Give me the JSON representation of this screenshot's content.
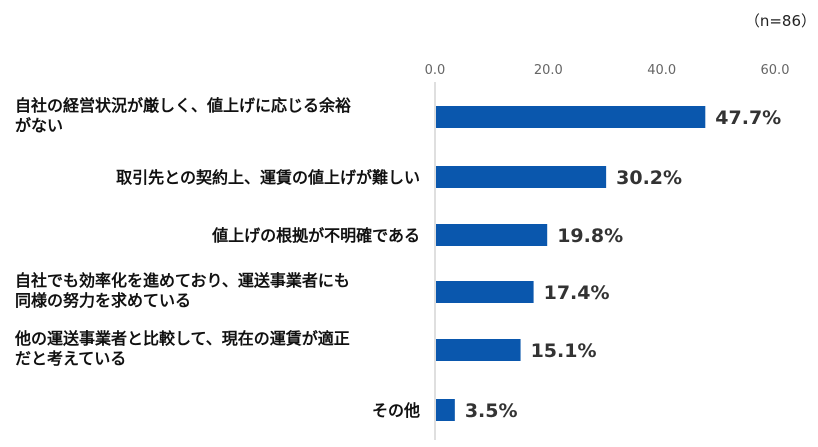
{
  "chart_data": {
    "type": "bar",
    "orientation": "horizontal",
    "note": "（n=86）",
    "categories": [
      [
        "自社の経営状況が厳しく、値上げに応じる余裕",
        "がない"
      ],
      [
        "取引先との契約上、運賃の値上げが難しい"
      ],
      [
        "値上げの根拠が不明確である"
      ],
      [
        "自社でも効率化を進めており、運送事業者にも",
        "同様の努力を求めている"
      ],
      [
        "他の運送事業者と比較して、現在の運賃が適正",
        "だと考えている"
      ],
      [
        "その他"
      ]
    ],
    "values": [
      47.7,
      30.2,
      19.8,
      17.4,
      15.1,
      3.5
    ],
    "value_labels": [
      "47.7%",
      "30.2%",
      "19.8%",
      "17.4%",
      "15.1%",
      "3.5%"
    ],
    "x_ticks": [
      "0.0",
      "20.0",
      "40.0",
      "60.0"
    ],
    "x_tick_values": [
      0,
      20,
      40,
      60
    ],
    "xlim": [
      0,
      60
    ],
    "grid": false,
    "colors": {
      "bar": "#0a57ad",
      "axis": "#bfbfbf"
    }
  }
}
